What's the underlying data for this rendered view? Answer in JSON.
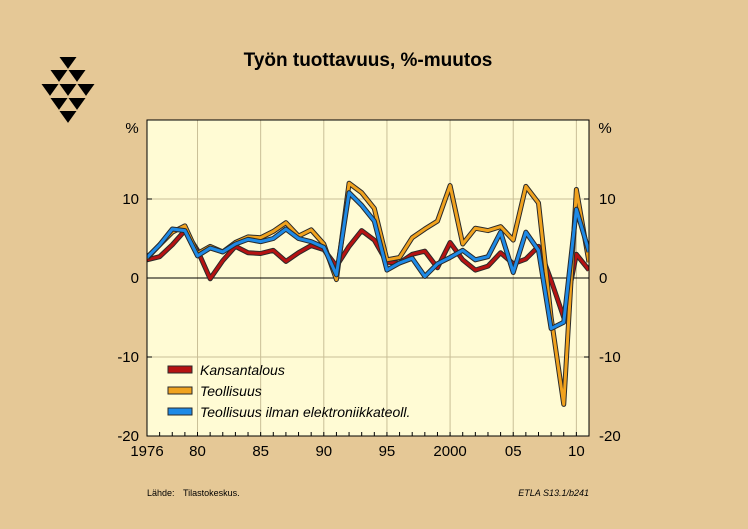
{
  "colors": {
    "background": "#e5c896",
    "plot_area": "#fffbd4",
    "gridline": "#c9bf97",
    "kansantalous": "#b51212",
    "teollisuus": "#f0a21e",
    "teollisuus_ilman": "#1e8ae6",
    "line_shadow": "#2a2a2a"
  },
  "logo": {
    "name": "etla-logo-icon"
  },
  "footer": {
    "source_label": "Lähde:",
    "source_value": "Tilastokeskus.",
    "code": "ETLA S13.1/b241"
  },
  "chart_data": {
    "type": "line",
    "title": "Työn tuottavuus, %-muutos",
    "ylabel_left": "%",
    "ylabel_right": "%",
    "xlim": [
      1976,
      2011
    ],
    "ylim": [
      -20,
      20
    ],
    "yticks": [
      10,
      0,
      -10,
      -20
    ],
    "ytick_labels": [
      "10",
      "0",
      "-10",
      "-20"
    ],
    "xticks": [
      1976,
      1980,
      1985,
      1990,
      1995,
      2000,
      2005,
      2010
    ],
    "xtick_labels": [
      "1976",
      "80",
      "85",
      "90",
      "95",
      "2000",
      "05",
      "10"
    ],
    "grid": true,
    "legend_position": "bottom-left",
    "x": [
      1976,
      1977,
      1978,
      1979,
      1980,
      1981,
      1982,
      1983,
      1984,
      1985,
      1986,
      1987,
      1988,
      1989,
      1990,
      1991,
      1992,
      1993,
      1994,
      1995,
      1996,
      1997,
      1998,
      1999,
      2000,
      2001,
      2002,
      2003,
      2004,
      2005,
      2006,
      2007,
      2008,
      2009,
      2010,
      2011
    ],
    "series": [
      {
        "name": "Kansantalous",
        "color": "#b51212",
        "values": [
          2.3,
          2.7,
          4.2,
          6.0,
          3.5,
          -0.1,
          2.2,
          4.0,
          3.2,
          3.1,
          3.5,
          2.1,
          3.2,
          4.1,
          3.6,
          1.5,
          4.0,
          6.0,
          4.8,
          2.0,
          1.9,
          3.0,
          3.4,
          1.3,
          4.5,
          2.3,
          1.0,
          1.5,
          3.2,
          1.8,
          2.4,
          4.0,
          -0.3,
          -5.0,
          3.0,
          1.0
        ]
      },
      {
        "name": "Teollisuus",
        "color": "#f0a21e",
        "values": [
          2.5,
          4.2,
          5.8,
          6.6,
          3.1,
          4.0,
          3.3,
          4.5,
          5.2,
          5.1,
          5.9,
          7.0,
          5.3,
          6.1,
          4.3,
          -0.2,
          12.0,
          10.8,
          8.8,
          2.3,
          2.6,
          5.1,
          6.2,
          7.2,
          11.7,
          4.3,
          6.3,
          6.0,
          6.5,
          4.8,
          11.6,
          9.5,
          -5.0,
          -16.0,
          11.2,
          2.0
        ]
      },
      {
        "name": "Teollisuus ilman elektroniikkateoll.",
        "color": "#1e8ae6",
        "values": [
          2.6,
          4.2,
          6.2,
          6.0,
          2.8,
          3.8,
          3.3,
          4.3,
          4.9,
          4.6,
          5.0,
          6.2,
          5.0,
          4.6,
          3.9,
          0.4,
          10.8,
          9.2,
          7.2,
          1.0,
          1.9,
          2.5,
          0.2,
          1.8,
          2.6,
          3.5,
          2.3,
          2.7,
          5.8,
          0.7,
          5.8,
          3.5,
          -6.4,
          -5.6,
          8.7,
          3.3
        ]
      }
    ]
  }
}
